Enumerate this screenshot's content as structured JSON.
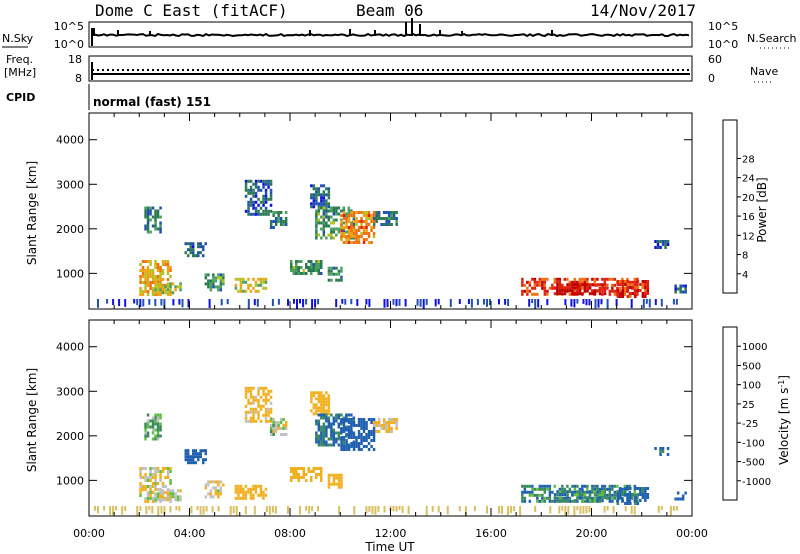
{
  "header": {
    "station": "Dome C East (fitACF)",
    "beam": "Beam 06",
    "date": "14/Nov/2017"
  },
  "status_panels": {
    "nsky_label": "N.Sky",
    "nsearch_label": "N.Search",
    "noise_ticks_left": [
      "10^5",
      "10^0"
    ],
    "noise_ticks_right": [
      "10^5",
      "10^0"
    ],
    "freq_label": "Freq.",
    "freq_unit": "[MHz]",
    "freq_ticks_left": [
      "18",
      "8"
    ],
    "nave_label": "Nave",
    "nave_ticks_right": [
      "60",
      "0"
    ],
    "cpid_label": "CPID",
    "cpid_text": "normal (fast) 151"
  },
  "power_panel": {
    "ylabel": "Slant Range [km]",
    "yticks": [
      "1000",
      "2000",
      "3000",
      "4000"
    ],
    "colorbar_label": "Power [dB]",
    "colorbar_ticks": [
      "4",
      "8",
      "12",
      "16",
      "20",
      "24",
      "28"
    ],
    "colors": [
      "#1010e0",
      "#2050b0",
      "#2a7a50",
      "#4aa060",
      "#b8c020",
      "#f0a010",
      "#f07010",
      "#e02010",
      "#c00000"
    ]
  },
  "velocity_panel": {
    "ylabel": "Slant Range [km]",
    "yticks": [
      "1000",
      "2000",
      "3000",
      "4000"
    ],
    "colorbar_label": "Velocity [m s",
    "colorbar_unit_exp": "-1",
    "colorbar_close": "]",
    "colorbar_ticks": [
      "1000",
      "500",
      "100",
      "25",
      "-25",
      "-100",
      "-500",
      "-1000"
    ],
    "colors": [
      "#1030d0",
      "#2060b0",
      "#3a8a60",
      "#60c040",
      "#c0c0c0",
      "#f0b020",
      "#f08020",
      "#f04010",
      "#e00000"
    ]
  },
  "xaxis": {
    "ticks": [
      "00:00",
      "04:00",
      "08:00",
      "12:00",
      "16:00",
      "20:00",
      "00:00"
    ],
    "label": "Time UT"
  },
  "chart_data": {
    "type": "heatmap",
    "x_unit": "hours UT",
    "xlim": [
      0,
      24
    ],
    "ylim": [
      200,
      4600
    ],
    "power_range_db": [
      0,
      30
    ],
    "velocity_range": [
      -1200,
      1200
    ],
    "echo_regions": [
      {
        "t0": 2.0,
        "t1": 3.2,
        "r0": 550,
        "r1": 1300,
        "power": 18,
        "velocity": -80
      },
      {
        "t0": 2.6,
        "t1": 3.6,
        "r0": 550,
        "r1": 800,
        "power": 14,
        "velocity": -60
      },
      {
        "t0": 2.2,
        "t1": 2.8,
        "r0": 1900,
        "r1": 2500,
        "power": 8,
        "velocity": 10
      },
      {
        "t0": 3.8,
        "t1": 4.6,
        "r0": 1400,
        "r1": 1700,
        "power": 6,
        "velocity": 300
      },
      {
        "t0": 4.6,
        "t1": 5.3,
        "r0": 600,
        "r1": 1000,
        "power": 10,
        "velocity": -100
      },
      {
        "t0": 5.8,
        "t1": 7.0,
        "r0": 600,
        "r1": 900,
        "power": 15,
        "velocity": -300
      },
      {
        "t0": 6.2,
        "t1": 7.2,
        "r0": 2300,
        "r1": 3100,
        "power": 6,
        "velocity": -150
      },
      {
        "t0": 7.2,
        "t1": 7.8,
        "r0": 2000,
        "r1": 2400,
        "power": 8,
        "velocity": -40
      },
      {
        "t0": 8.0,
        "t1": 9.2,
        "r0": 1000,
        "r1": 1300,
        "power": 10,
        "velocity": -350
      },
      {
        "t0": 8.8,
        "t1": 9.5,
        "r0": 2500,
        "r1": 3000,
        "power": 6,
        "velocity": -200
      },
      {
        "t0": 9.5,
        "t1": 10.0,
        "r0": 850,
        "r1": 1150,
        "power": 9,
        "velocity": -300
      },
      {
        "t0": 9.0,
        "t1": 10.5,
        "r0": 1800,
        "r1": 2500,
        "power": 10,
        "velocity": 120
      },
      {
        "t0": 10.0,
        "t1": 11.3,
        "r0": 1700,
        "r1": 2400,
        "power": 20,
        "velocity": 200
      },
      {
        "t0": 11.3,
        "t1": 12.2,
        "r0": 2100,
        "r1": 2400,
        "power": 7,
        "velocity": -120
      },
      {
        "t0": 17.2,
        "t1": 21.8,
        "r0": 550,
        "r1": 900,
        "power": 24,
        "velocity": 80
      },
      {
        "t0": 18.5,
        "t1": 20.5,
        "r0": 560,
        "r1": 780,
        "power": 28,
        "velocity": 60
      },
      {
        "t0": 21.0,
        "t1": 22.2,
        "r0": 500,
        "r1": 850,
        "power": 26,
        "velocity": 150
      },
      {
        "t0": 23.3,
        "t1": 23.7,
        "r0": 550,
        "r1": 750,
        "power": 6,
        "velocity": 400
      },
      {
        "t0": 22.5,
        "t1": 23.0,
        "r0": 1550,
        "r1": 1750,
        "power": 5,
        "velocity": 150
      }
    ]
  }
}
